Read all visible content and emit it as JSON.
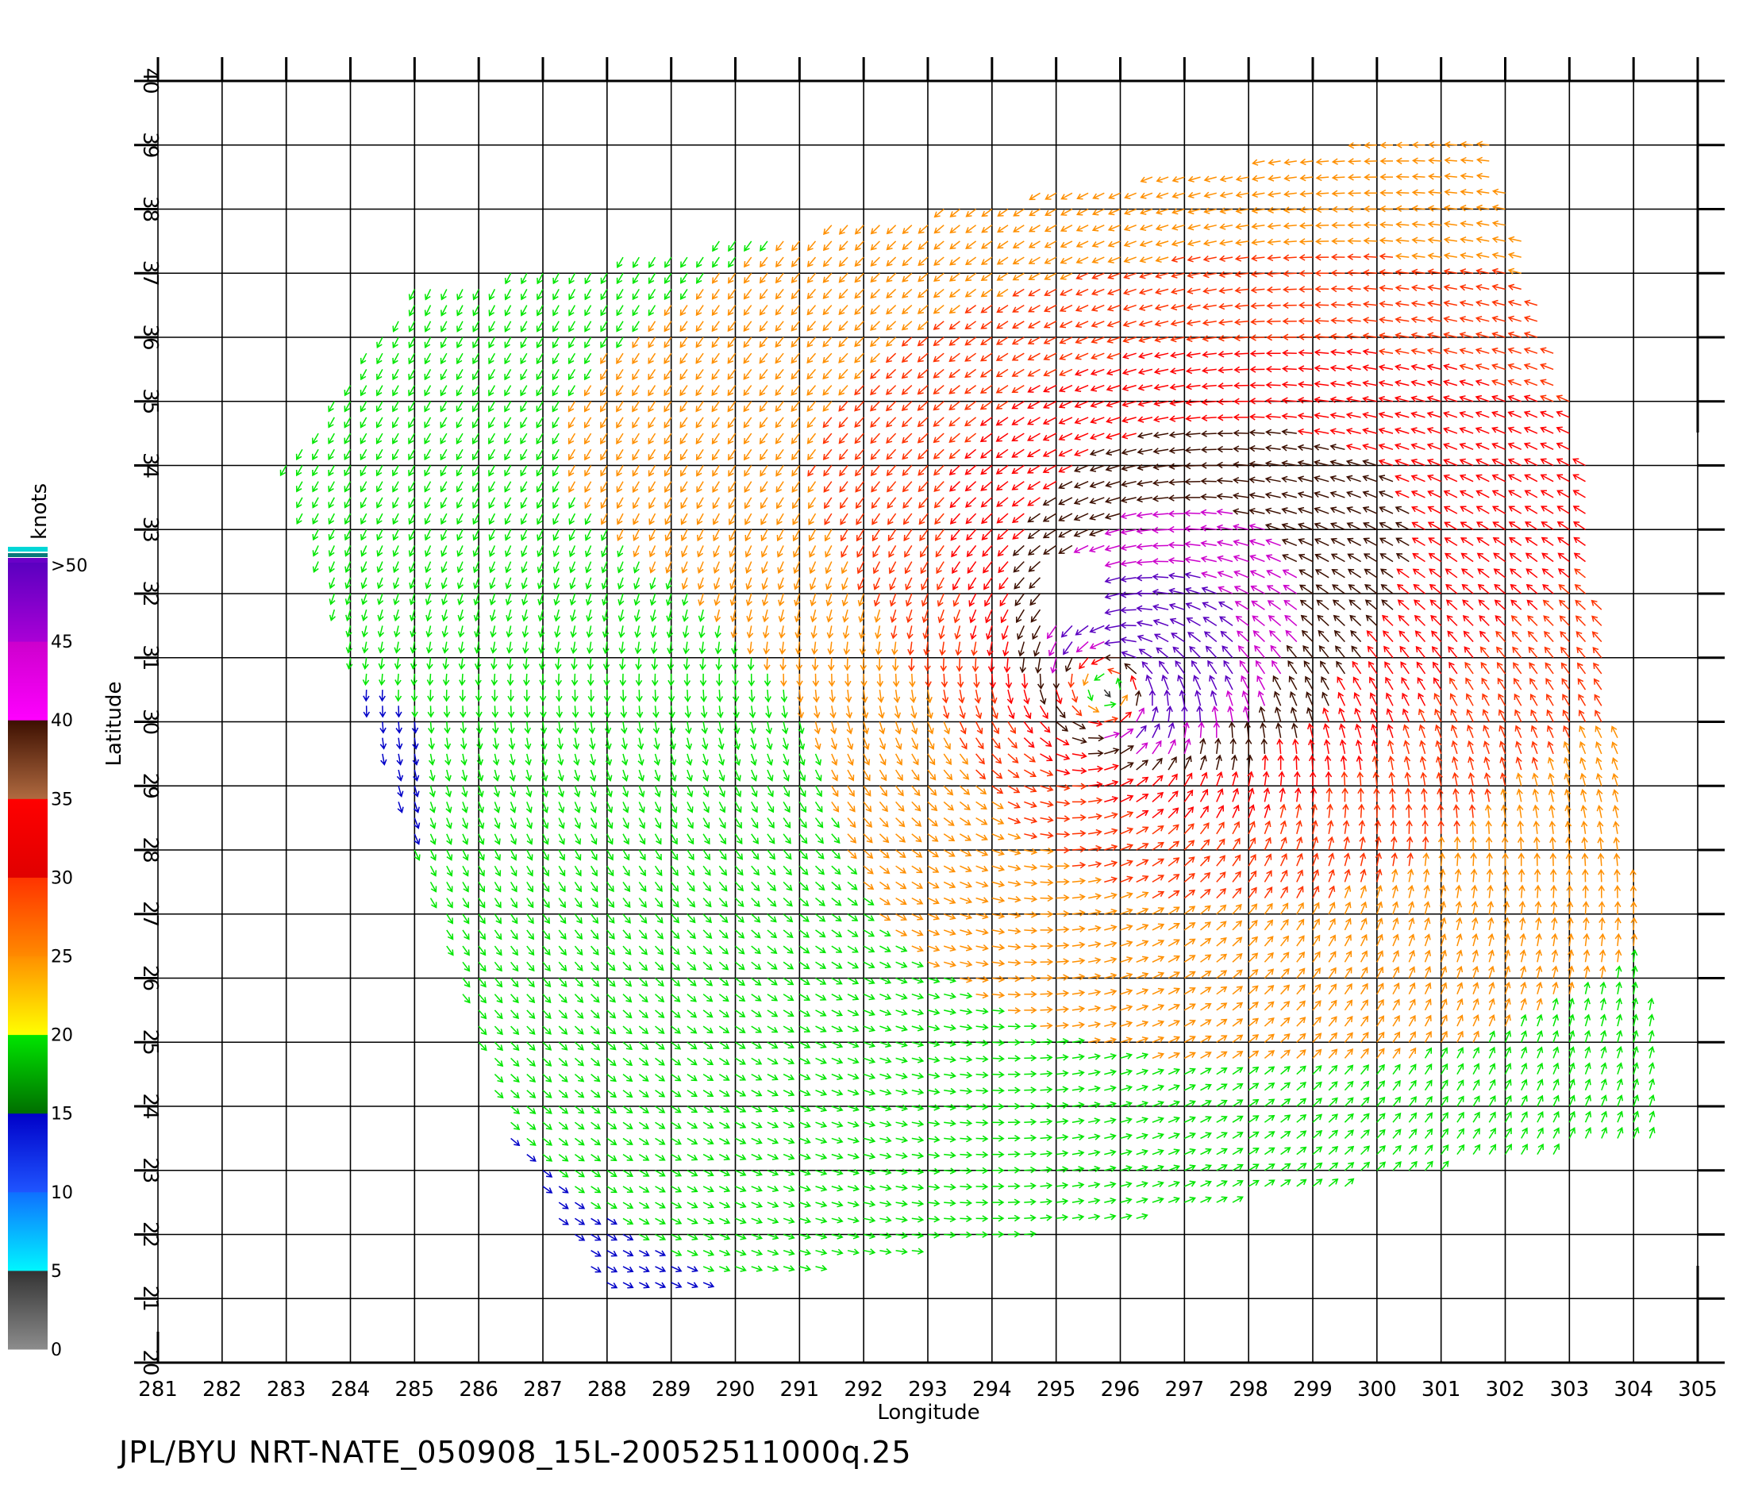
{
  "footer": "JPL/BYU  NRT-NATE_050908_15L-20052511000q.25",
  "colorbar": {
    "unit_label": "knots",
    "bands": [
      {
        "from": 0,
        "to": 5,
        "top": "#333333",
        "bottom": "#8c8c8c"
      },
      {
        "from": 5,
        "to": 10,
        "top": "#0f6fff",
        "bottom": "#00f6ff"
      },
      {
        "from": 10,
        "to": 15,
        "top": "#0000c8",
        "bottom": "#1f55ff"
      },
      {
        "from": 15,
        "to": 20,
        "top": "#00e600",
        "bottom": "#006e00"
      },
      {
        "from": 20,
        "to": 25,
        "top": "#ff8f00",
        "bottom": "#ffff00"
      },
      {
        "from": 25,
        "to": 30,
        "top": "#ff3300",
        "bottom": "#ff8a00"
      },
      {
        "from": 30,
        "to": 35,
        "top": "#ff0000",
        "bottom": "#e00000"
      },
      {
        "from": 35,
        "to": 40,
        "top": "#3c0f00",
        "bottom": "#b06a40"
      },
      {
        "from": 40,
        "to": 45,
        "top": "#cc00cc",
        "bottom": "#ff00ff"
      },
      {
        "from": 45,
        "to": 50,
        "top": "#5a00c0",
        "bottom": "#aa00d6"
      }
    ],
    "labels": [
      "0",
      "5",
      "10",
      "15",
      "20",
      "25",
      "30",
      "35",
      "40",
      "45",
      ">50"
    ]
  },
  "chart_data": {
    "type": "vector-field",
    "title": "",
    "xlabel": "Longitude",
    "ylabel": "Latitude",
    "xlim": [
      281,
      305
    ],
    "ylim": [
      20,
      40
    ],
    "xticks": [
      281,
      282,
      283,
      284,
      285,
      286,
      287,
      288,
      289,
      290,
      291,
      292,
      293,
      294,
      295,
      296,
      297,
      298,
      299,
      300,
      301,
      302,
      303,
      304,
      305
    ],
    "yticks": [
      20,
      21,
      22,
      23,
      24,
      25,
      26,
      27,
      28,
      29,
      30,
      31,
      32,
      33,
      34,
      35,
      36,
      37,
      38,
      39,
      40
    ],
    "grid": true,
    "speed_units": "knots",
    "speed_range": [
      0,
      50
    ],
    "cyclone_center": {
      "lon": 295.8,
      "lat": 30.6
    },
    "peak_speed_knots": 47,
    "swath_corners": [
      [
        283,
        34
      ],
      [
        285,
        36.8
      ],
      [
        301.7,
        39.3
      ],
      [
        303.2,
        34.5
      ],
      [
        304.5,
        23.5
      ],
      [
        290,
        21.3
      ],
      [
        288,
        21
      ],
      [
        286.5,
        23.5
      ]
    ]
  }
}
